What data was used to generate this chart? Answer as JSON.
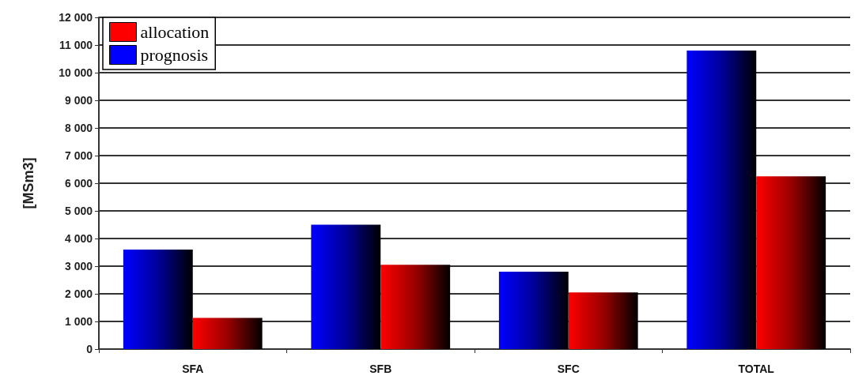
{
  "chart_data": {
    "type": "bar",
    "ylabel": "[MSm3]",
    "categories": [
      "SFA",
      "SFB",
      "SFC",
      "TOTAL"
    ],
    "series": [
      {
        "name": "prognosis",
        "color": "#0000ff",
        "values": [
          3600,
          4500,
          2800,
          10800
        ]
      },
      {
        "name": "allocation",
        "color": "#ff0000",
        "values": [
          1130,
          3050,
          2050,
          6250
        ]
      }
    ],
    "ylim": [
      0,
      12000
    ],
    "yticks": [
      0,
      {
        "value": 1000,
        "label": "1 000"
      },
      {
        "value": 2000,
        "label": "2 000"
      },
      {
        "value": 3000,
        "label": "3 000"
      },
      {
        "value": 4000,
        "label": "4 000"
      },
      {
        "value": 5000,
        "label": "5 000"
      },
      {
        "value": 6000,
        "label": "6 000"
      },
      {
        "value": 7000,
        "label": "7 000"
      },
      {
        "value": 8000,
        "label": "8 000"
      },
      {
        "value": 9000,
        "label": "9 000"
      },
      {
        "value": 10000,
        "label": "10 000"
      },
      {
        "value": 11000,
        "label": "11 000"
      },
      {
        "value": 12000,
        "label": "12 000"
      }
    ],
    "grid": "y",
    "legend": "top left"
  }
}
